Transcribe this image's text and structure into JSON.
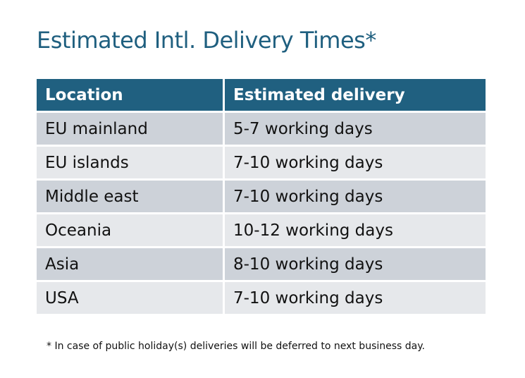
{
  "title": "Estimated Intl. Delivery Times*",
  "table": {
    "headers": [
      "Location",
      "Estimated delivery"
    ],
    "rows": [
      [
        "EU mainland",
        "5-7 working days"
      ],
      [
        "EU islands",
        "7-10 working days"
      ],
      [
        "Middle east",
        "7-10 working days"
      ],
      [
        "Oceania",
        "10-12 working days"
      ],
      [
        "Asia",
        "8-10 working days"
      ],
      [
        "USA",
        "7-10 working days"
      ]
    ]
  },
  "footnote": "* In case of public holiday(s) deliveries will be deferred to next business day.",
  "colors": {
    "header": "#206080",
    "title": "#1f5f7f",
    "row_odd": "#cdd2d9",
    "row_even": "#e6e8eb"
  }
}
